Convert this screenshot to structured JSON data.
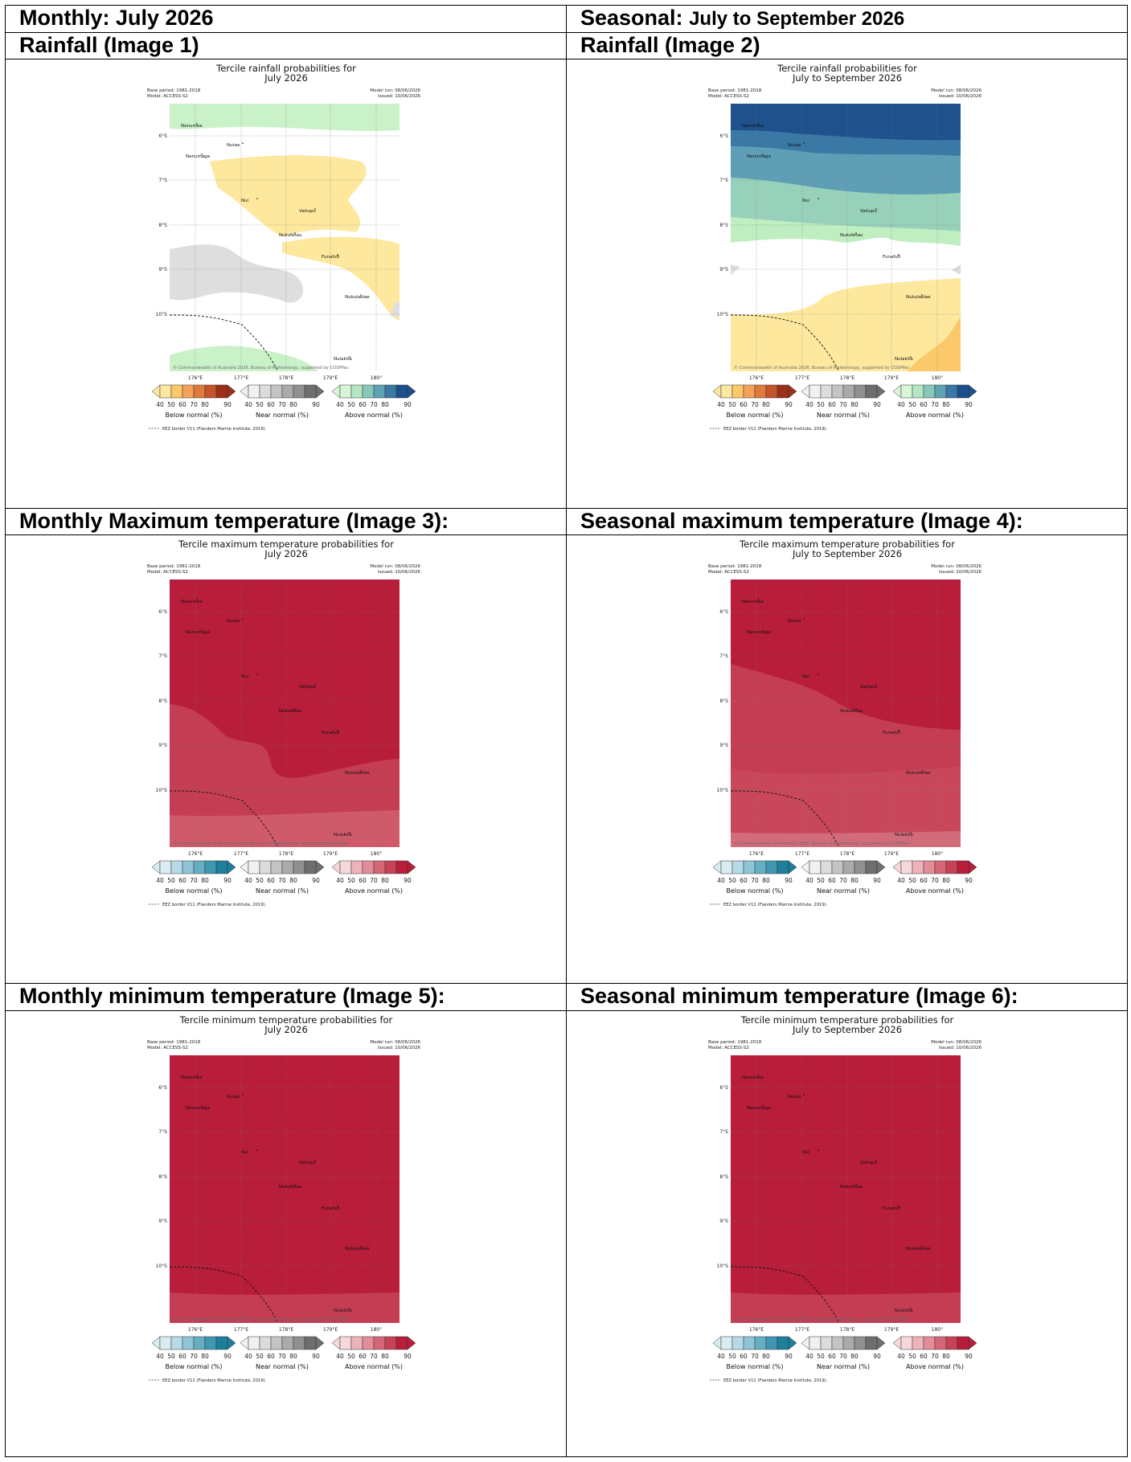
{
  "rows": [
    {
      "left": {
        "bold": "Monthly: July 2026",
        "rest": ""
      },
      "right": {
        "bold": "Seasonal: ",
        "rest": "July to September 2026"
      }
    },
    {
      "left": {
        "bold": "Rainfall (Image 1)",
        "rest": ""
      },
      "right": {
        "bold": "Rainfall (Image 2)",
        "rest": ""
      }
    }
  ],
  "headers": {
    "monthly_max": "Monthly Maximum temperature (Image 3):",
    "seasonal_max": "Seasonal maximum temperature (Image 4):",
    "monthly_min": "Monthly minimum temperature (Image 5):",
    "seasonal_min": "Seasonal minimum temperature (Image 6):"
  },
  "common": {
    "base_period": "Base period: 1981-2018",
    "model": "Model: ACCESS-S2",
    "model_run": "Model run: 08/06/2026",
    "issued": "Issued: 10/06/2026",
    "copyright": "© Commonwealth of Australia 2026, Bureau of Meteorology, supported by COSPPac",
    "eez_note": "EEZ border V11 (Flanders Marine Institute, 2019).",
    "lat_labels": [
      "6°S",
      "7°S",
      "8°S",
      "9°S",
      "10°S"
    ],
    "lon_labels": [
      "176°E",
      "177°E",
      "178°E",
      "179°E",
      "180°"
    ],
    "legend_ticks": [
      "40",
      "50",
      "60",
      "70",
      "80",
      "90"
    ],
    "islands": [
      "Nanumea",
      "Nutao",
      "Nanumaga",
      "Nui",
      "Vaitupu",
      "Nukufetau",
      "Funafuti",
      "Nukulaelae",
      "Nulakita"
    ]
  },
  "maps": [
    {
      "id": "rain_monthly",
      "title1": "Tercile rainfall probabilities for",
      "title2": "July 2026",
      "legend": [
        "Below normal (%)",
        "Near normal (%)",
        "Above normal (%)"
      ],
      "legend_colors": {
        "below": [
          "#fde7a1",
          "#fbc96a",
          "#f4a259",
          "#e07a3b",
          "#c4552a",
          "#9c2f18"
        ],
        "near": [
          "#f1f1f1",
          "#dcdcdc",
          "#c4c4c4",
          "#aaaaaa",
          "#909090",
          "#6e6e6e"
        ],
        "above": [
          "#d8f5d6",
          "#b5e6c3",
          "#87c9b9",
          "#5ea2b4",
          "#3a78a5",
          "#1d4f8d"
        ]
      }
    },
    {
      "id": "rain_seasonal",
      "title1": "Tercile rainfall probabilities for",
      "title2": "July to September 2026",
      "legend": [
        "Below normal (%)",
        "Near normal (%)",
        "Above normal (%)"
      ],
      "legend_colors": {
        "below": [
          "#fde7a1",
          "#fbc96a",
          "#f4a259",
          "#e07a3b",
          "#c4552a",
          "#9c2f18"
        ],
        "near": [
          "#f1f1f1",
          "#dcdcdc",
          "#c4c4c4",
          "#aaaaaa",
          "#909090",
          "#6e6e6e"
        ],
        "above": [
          "#d8f5d6",
          "#b5e6c3",
          "#87c9b9",
          "#5ea2b4",
          "#3a78a5",
          "#1d4f8d"
        ]
      }
    },
    {
      "id": "tmax_monthly",
      "title1": "Tercile maximum temperature probabilities for",
      "title2": "July 2026",
      "legend": [
        "Below normal (%)",
        "Near normal (%)",
        "Above normal (%)"
      ],
      "legend_colors": {
        "below": [
          "#d9ecf2",
          "#b7dbe6",
          "#8fc5d6",
          "#66aec4",
          "#3f97b1",
          "#1d7f9c"
        ],
        "near": [
          "#f1f1f1",
          "#dcdcdc",
          "#c4c4c4",
          "#aaaaaa",
          "#909090",
          "#6e6e6e"
        ],
        "above": [
          "#f6d7da",
          "#edb3ba",
          "#e28d98",
          "#d56676",
          "#c84256",
          "#b81d3a"
        ]
      }
    },
    {
      "id": "tmax_seasonal",
      "title1": "Tercile maximum temperature probabilities for",
      "title2": "July to September 2026",
      "legend": [
        "Below normal (%)",
        "Near normal (%)",
        "Above normal (%)"
      ],
      "legend_colors": {
        "below": [
          "#d9ecf2",
          "#b7dbe6",
          "#8fc5d6",
          "#66aec4",
          "#3f97b1",
          "#1d7f9c"
        ],
        "near": [
          "#f1f1f1",
          "#dcdcdc",
          "#c4c4c4",
          "#aaaaaa",
          "#909090",
          "#6e6e6e"
        ],
        "above": [
          "#f6d7da",
          "#edb3ba",
          "#e28d98",
          "#d56676",
          "#c84256",
          "#b81d3a"
        ]
      }
    },
    {
      "id": "tmin_monthly",
      "title1": "Tercile minimum temperature probabilities for",
      "title2": "July 2026",
      "legend": [
        "Below normal (%)",
        "Near normal (%)",
        "Above normal (%)"
      ],
      "legend_colors": {
        "below": [
          "#d9ecf2",
          "#b7dbe6",
          "#8fc5d6",
          "#66aec4",
          "#3f97b1",
          "#1d7f9c"
        ],
        "near": [
          "#f1f1f1",
          "#dcdcdc",
          "#c4c4c4",
          "#aaaaaa",
          "#909090",
          "#6e6e6e"
        ],
        "above": [
          "#f6d7da",
          "#edb3ba",
          "#e28d98",
          "#d56676",
          "#c84256",
          "#b81d3a"
        ]
      }
    },
    {
      "id": "tmin_seasonal",
      "title1": "Tercile minimum temperature probabilities for",
      "title2": "July to September 2026",
      "legend": [
        "Below normal (%)",
        "Near normal (%)",
        "Above normal (%)"
      ],
      "legend_colors": {
        "below": [
          "#d9ecf2",
          "#b7dbe6",
          "#8fc5d6",
          "#66aec4",
          "#3f97b1",
          "#1d7f9c"
        ],
        "near": [
          "#f1f1f1",
          "#dcdcdc",
          "#c4c4c4",
          "#aaaaaa",
          "#909090",
          "#6e6e6e"
        ],
        "above": [
          "#f6d7da",
          "#edb3ba",
          "#e28d98",
          "#d56676",
          "#c84256",
          "#b81d3a"
        ]
      }
    }
  ]
}
